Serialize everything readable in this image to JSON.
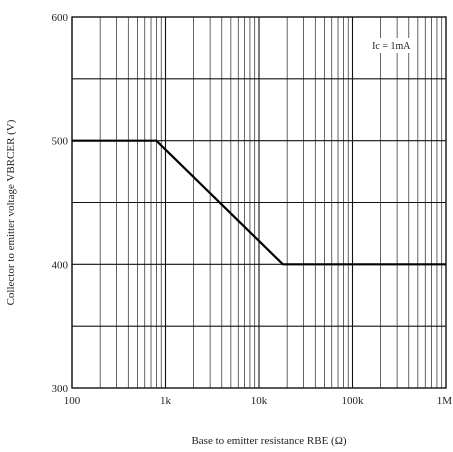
{
  "chart_data": {
    "type": "line",
    "title": "",
    "xlabel": "Base to emitter resistance  RBE (Ω)",
    "ylabel": "Collector to emitter voltage  VBRCER (V)",
    "x_scale": "log",
    "xlim": [
      100,
      1000000
    ],
    "ylim": [
      300,
      600
    ],
    "x_ticks": [
      100,
      1000,
      10000,
      100000,
      1000000
    ],
    "x_tick_labels": [
      "100",
      "1k",
      "10k",
      "100k",
      "1M"
    ],
    "y_ticks": [
      300,
      400,
      500,
      600
    ],
    "y_tick_labels": [
      "300",
      "400",
      "500",
      "600"
    ],
    "y_minor_ticks": [
      350,
      450,
      550
    ],
    "grid": true,
    "annotations": [
      {
        "text": "Ic = 1mA",
        "position": "top-right"
      }
    ],
    "series": [
      {
        "x": [
          100,
          800,
          18000,
          1000000
        ],
        "y": [
          500,
          500,
          400,
          400
        ]
      }
    ]
  }
}
